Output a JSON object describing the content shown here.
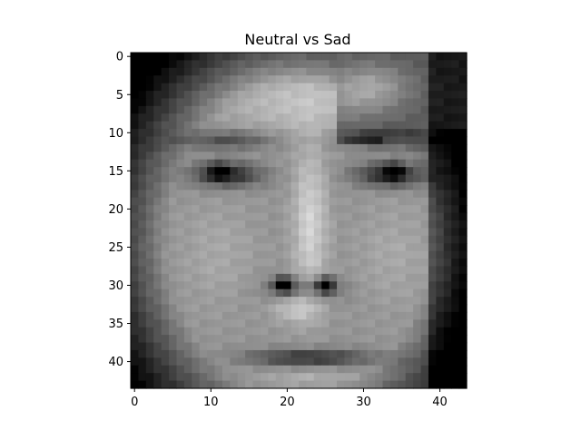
{
  "chart_data": {
    "type": "heatmap",
    "title": "Neutral vs Sad",
    "xlabel": "",
    "ylabel": "",
    "colormap": "gray",
    "grid": false,
    "image_shape": [
      44,
      44
    ],
    "xlim": [
      -0.5,
      43.5
    ],
    "ylim": [
      43.5,
      -0.5
    ],
    "x_ticks": [
      0,
      10,
      20,
      30,
      40
    ],
    "y_ticks": [
      0,
      5,
      10,
      15,
      20,
      25,
      30,
      35,
      40
    ],
    "x_tick_labels": [
      "0",
      "10",
      "20",
      "30",
      "40"
    ],
    "y_tick_labels": [
      "0",
      "5",
      "10",
      "15",
      "20",
      "25",
      "30",
      "35",
      "40"
    ]
  }
}
